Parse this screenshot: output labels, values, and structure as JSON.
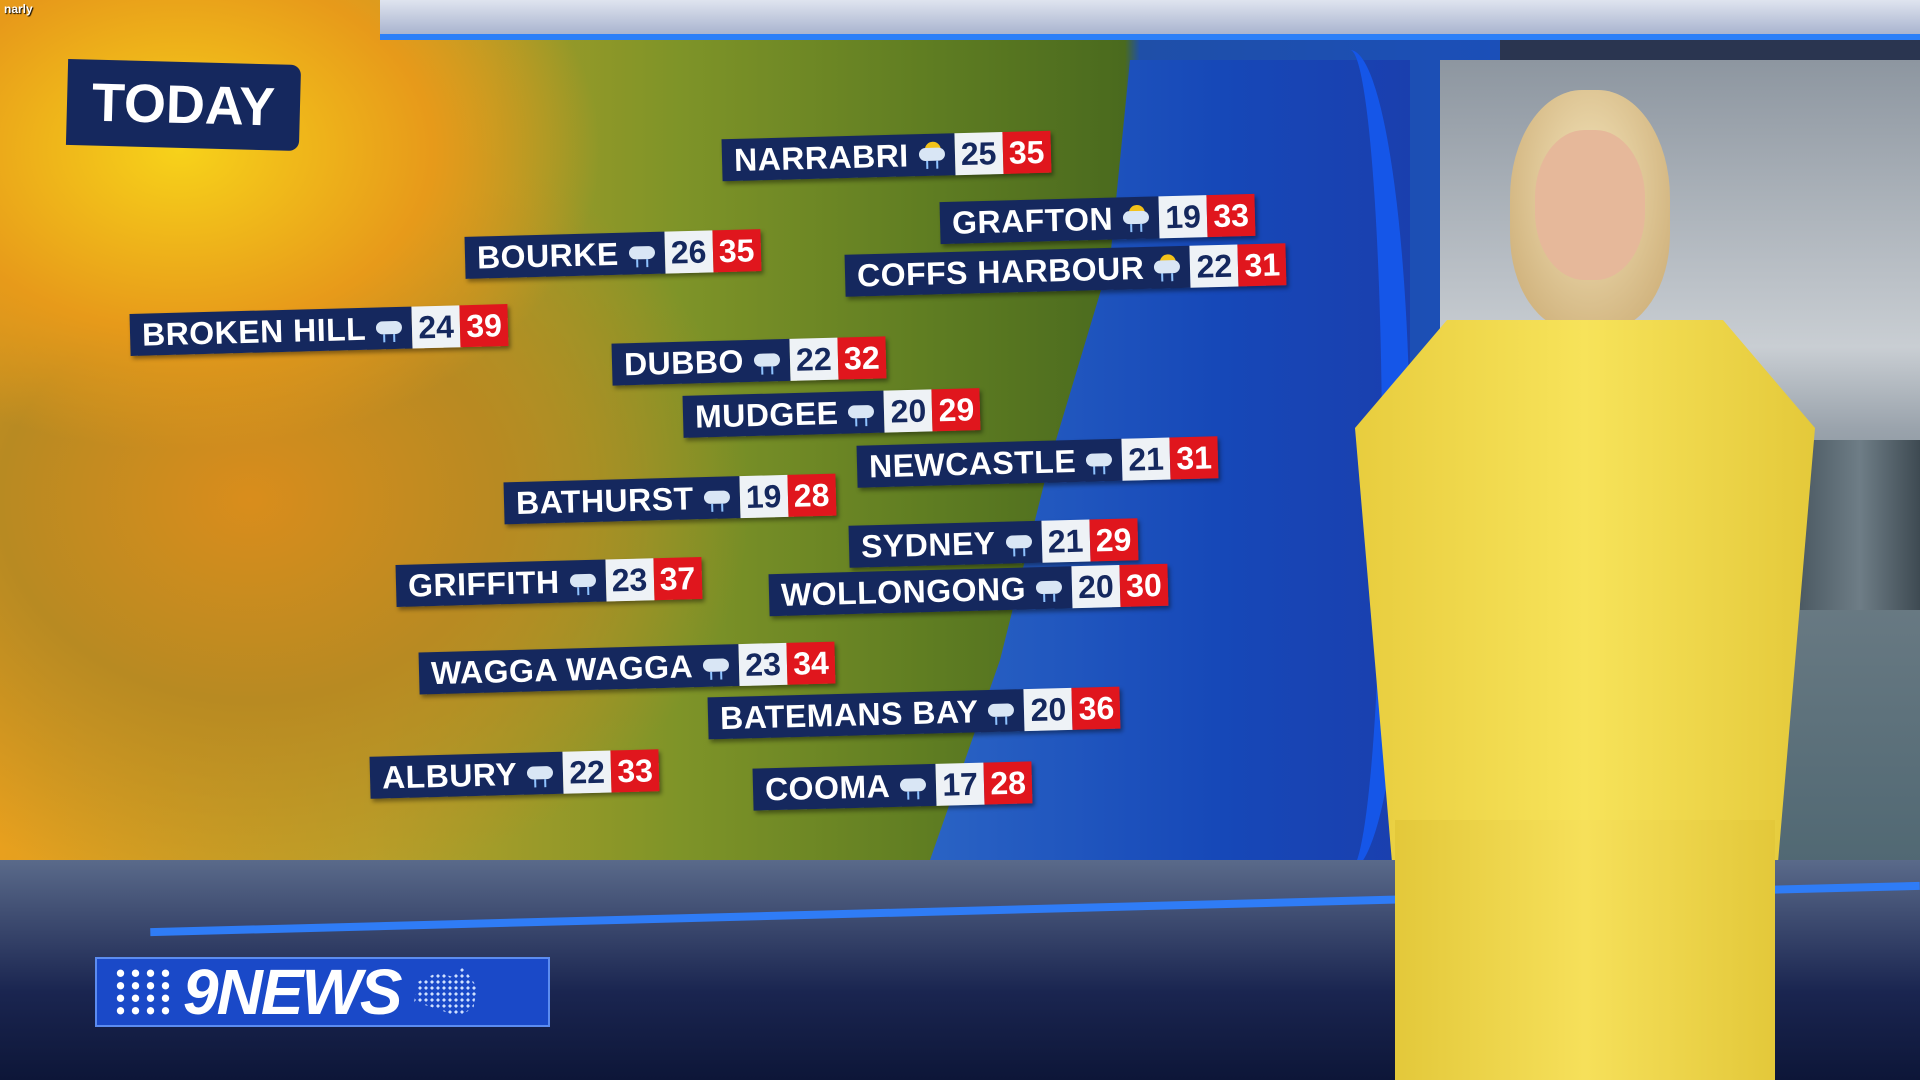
{
  "watermark": "narly",
  "title": "TODAY",
  "logo": "9NEWS",
  "colors": {
    "label_bg": "#15285e",
    "min_bg": "#eef2f6",
    "max_bg": "#e0161d",
    "accent_blue": "#2b7ff8"
  },
  "cities": [
    {
      "name": "NARRABRI",
      "icon": "sun-storm-icon",
      "min": "25",
      "max": "35"
    },
    {
      "name": "GRAFTON",
      "icon": "sun-storm-icon",
      "min": "19",
      "max": "33"
    },
    {
      "name": "COFFS HARBOUR",
      "icon": "sun-storm-icon",
      "min": "22",
      "max": "31"
    },
    {
      "name": "BOURKE",
      "icon": "storm-icon",
      "min": "26",
      "max": "35"
    },
    {
      "name": "BROKEN HILL",
      "icon": "storm-icon",
      "min": "24",
      "max": "39"
    },
    {
      "name": "DUBBO",
      "icon": "storm-icon",
      "min": "22",
      "max": "32"
    },
    {
      "name": "MUDGEE",
      "icon": "storm-icon",
      "min": "20",
      "max": "29"
    },
    {
      "name": "NEWCASTLE",
      "icon": "storm-icon",
      "min": "21",
      "max": "31"
    },
    {
      "name": "BATHURST",
      "icon": "storm-icon",
      "min": "19",
      "max": "28"
    },
    {
      "name": "SYDNEY",
      "icon": "storm-icon",
      "min": "21",
      "max": "29"
    },
    {
      "name": "GRIFFITH",
      "icon": "storm-icon",
      "min": "23",
      "max": "37"
    },
    {
      "name": "WOLLONGONG",
      "icon": "storm-icon",
      "min": "20",
      "max": "30"
    },
    {
      "name": "WAGGA WAGGA",
      "icon": "storm-icon",
      "min": "23",
      "max": "34"
    },
    {
      "name": "BATEMANS BAY",
      "icon": "storm-icon",
      "min": "20",
      "max": "36"
    },
    {
      "name": "ALBURY",
      "icon": "storm-icon",
      "min": "22",
      "max": "33"
    },
    {
      "name": "COOMA",
      "icon": "storm-icon",
      "min": "17",
      "max": "28"
    }
  ]
}
